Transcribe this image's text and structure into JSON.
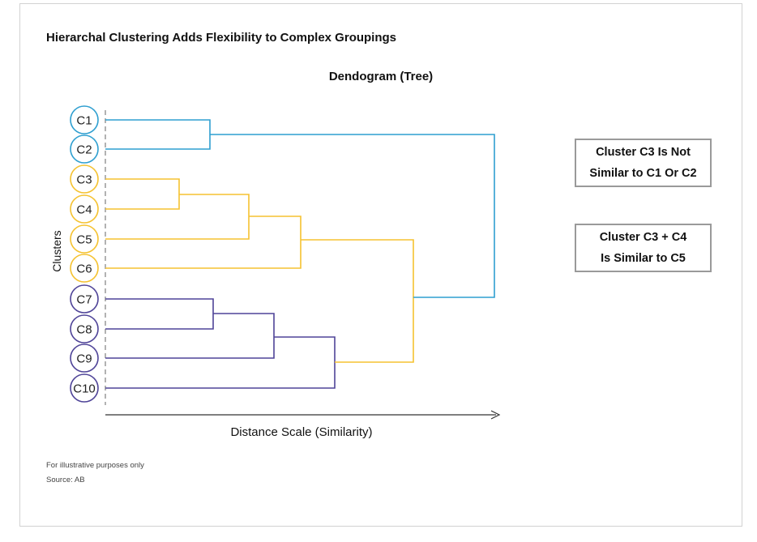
{
  "title": "Hierarchal Clustering Adds Flexibility to Complex Groupings",
  "subtitle": "Dendogram (Tree)",
  "y_label": "Clusters",
  "x_label": "Distance Scale (Similarity)",
  "notes": [
    "For illustrative purposes only",
    "Source: AB"
  ],
  "callouts": [
    {
      "lines": [
        "Cluster C3 Is Not",
        "Similar to C1 Or C2"
      ]
    },
    {
      "lines": [
        "Cluster C3 + C4",
        "Is Similar to C5"
      ]
    }
  ],
  "colors": {
    "blue": "#2f9fd0",
    "yellow": "#f5c230",
    "purple": "#4f4498",
    "axis": "#333333",
    "dash": "#999999"
  },
  "leaves": [
    {
      "label": "C1",
      "color": "blue"
    },
    {
      "label": "C2",
      "color": "blue"
    },
    {
      "label": "C3",
      "color": "yellow"
    },
    {
      "label": "C4",
      "color": "yellow"
    },
    {
      "label": "C5",
      "color": "yellow"
    },
    {
      "label": "C6",
      "color": "yellow"
    },
    {
      "label": "C7",
      "color": "purple"
    },
    {
      "label": "C8",
      "color": "purple"
    },
    {
      "label": "C9",
      "color": "purple"
    },
    {
      "label": "C10",
      "color": "purple"
    }
  ]
}
